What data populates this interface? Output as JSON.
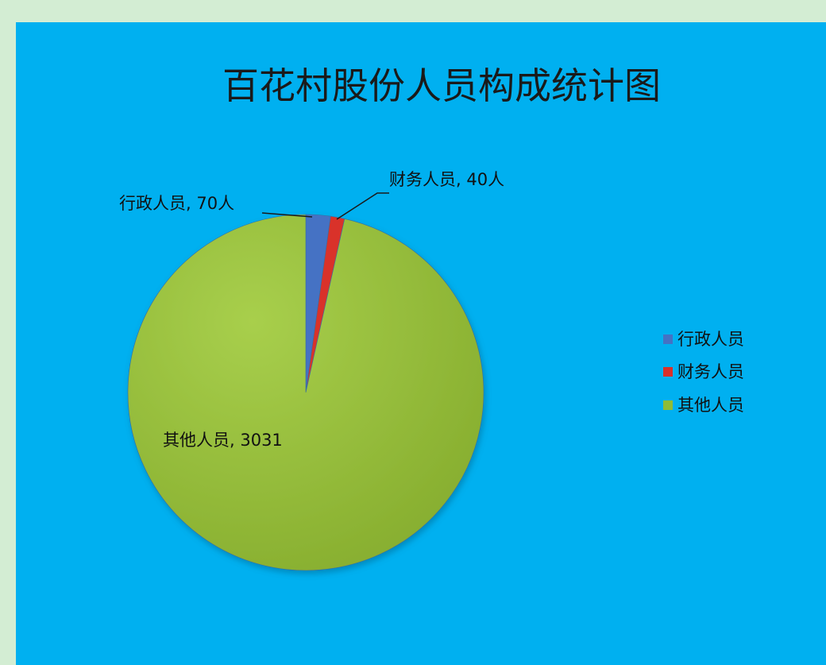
{
  "chart_data": {
    "type": "pie",
    "title": "百花村股份人员构成统计图",
    "slices": [
      {
        "name": "行政人员",
        "value": 70,
        "label": "行政人员, 70人",
        "color": "#4472c4"
      },
      {
        "name": "财务人员",
        "value": 40,
        "label": "财务人员, 40人",
        "color": "#d9302a"
      },
      {
        "name": "其他人员",
        "value": 3031,
        "label": "其他人员, 3031",
        "color": "#8fbc38"
      }
    ],
    "legend": {
      "placement": "right",
      "entries": [
        "行政人员",
        "财务人员",
        "其他人员"
      ]
    }
  }
}
